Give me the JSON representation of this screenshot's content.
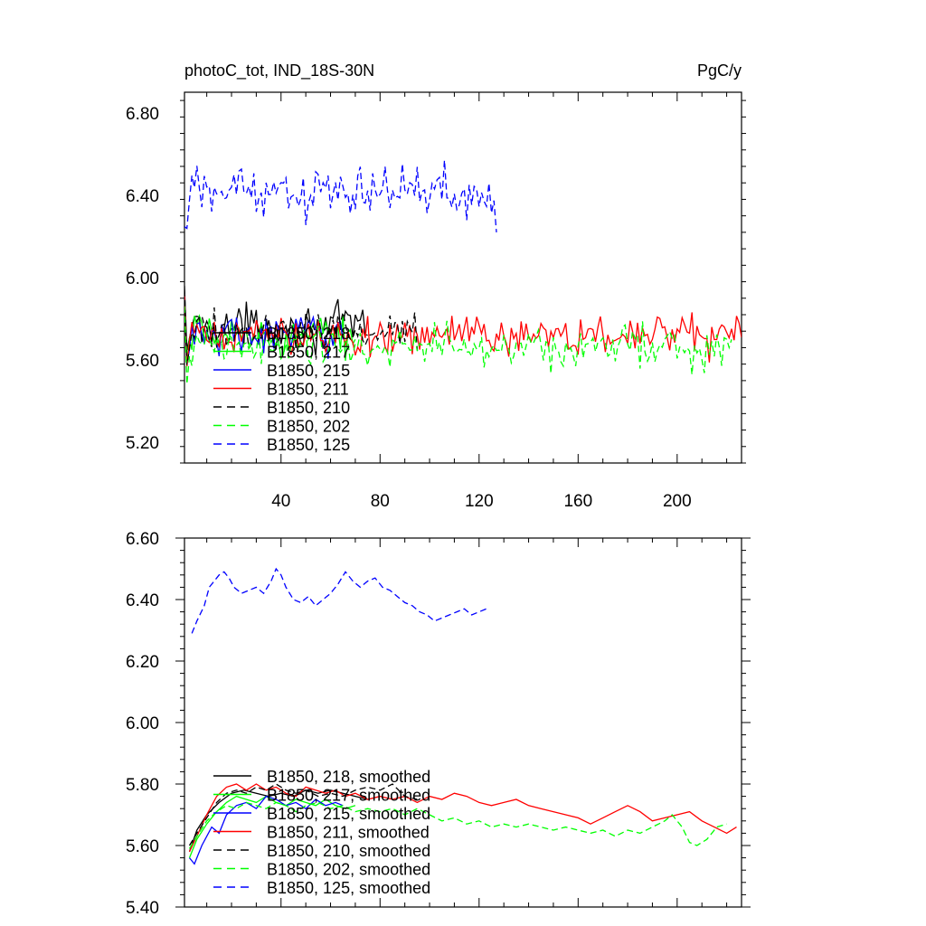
{
  "chart_data": [
    {
      "type": "line",
      "title": "photoC_tot, IND_18S-30N",
      "units": "PgC/y",
      "xlim": [
        1,
        226
      ],
      "ylim": [
        5.1,
        6.9
      ],
      "xticks": [
        40,
        80,
        120,
        160,
        200
      ],
      "yticks": [
        5.2,
        5.6,
        6.0,
        6.4,
        6.8
      ],
      "ytick_labels": [
        "5.20",
        "5.60",
        "6.00",
        "6.40",
        "6.80"
      ],
      "grid": false,
      "legend_position": "lower-left",
      "series": [
        {
          "name": "B1850, 218",
          "color": "#000000",
          "dash": "solid",
          "n": 75,
          "mean": 5.76,
          "amp": 0.09,
          "end_y": 5.72
        },
        {
          "name": "B1850, 217",
          "color": "#00ff00",
          "dash": "solid",
          "n": 70,
          "mean": 5.72,
          "amp": 0.08,
          "end_y": 5.7
        },
        {
          "name": "B1850, 215",
          "color": "#0000ff",
          "dash": "solid",
          "n": 65,
          "mean": 5.72,
          "amp": 0.09,
          "end_y": 5.7
        },
        {
          "name": "B1850, 211",
          "color": "#ff0000",
          "dash": "solid",
          "n": 226,
          "mean": 5.72,
          "amp": 0.08,
          "end_y": 5.71
        },
        {
          "name": "B1850, 210",
          "color": "#000000",
          "dash": "dashed",
          "n": 95,
          "mean": 5.74,
          "amp": 0.08,
          "end_y": 5.65
        },
        {
          "name": "B1850, 202",
          "color": "#00ff00",
          "dash": "dashed",
          "n": 222,
          "mean": 5.66,
          "amp": 0.09,
          "end_y": 5.7
        },
        {
          "name": "B1850, 125",
          "color": "#0000ff",
          "dash": "dashed",
          "n": 127,
          "mean": 6.42,
          "amp": 0.11,
          "start_y": 6.24,
          "end_y": 6.22
        }
      ]
    },
    {
      "type": "line",
      "xlim": [
        1,
        226
      ],
      "ylim": [
        5.4,
        6.6
      ],
      "xticks": [
        40,
        80,
        120,
        160,
        200
      ],
      "yticks": [
        5.4,
        5.6,
        5.8,
        6.0,
        6.2,
        6.4,
        6.6
      ],
      "ytick_labels": [
        "5.40",
        "5.60",
        "5.80",
        "6.00",
        "6.20",
        "6.40",
        "6.60"
      ],
      "grid": false,
      "legend_position": "lower-left",
      "series": [
        {
          "name": "B1850, 218, smoothed",
          "color": "#000000",
          "dash": "solid",
          "points": [
            [
              3,
              5.58
            ],
            [
              6,
              5.65
            ],
            [
              10,
              5.7
            ],
            [
              15,
              5.74
            ],
            [
              20,
              5.77
            ],
            [
              25,
              5.78
            ],
            [
              30,
              5.77
            ],
            [
              35,
              5.76
            ],
            [
              40,
              5.77
            ],
            [
              45,
              5.76
            ],
            [
              50,
              5.78
            ],
            [
              55,
              5.77
            ],
            [
              60,
              5.78
            ],
            [
              65,
              5.77
            ],
            [
              70,
              5.76
            ],
            [
              75,
              5.75
            ]
          ]
        },
        {
          "name": "B1850, 217, smoothed",
          "color": "#00ff00",
          "dash": "solid",
          "points": [
            [
              3,
              5.56
            ],
            [
              6,
              5.62
            ],
            [
              10,
              5.67
            ],
            [
              14,
              5.71
            ],
            [
              18,
              5.74
            ],
            [
              22,
              5.76
            ],
            [
              26,
              5.75
            ],
            [
              30,
              5.74
            ],
            [
              34,
              5.76
            ],
            [
              38,
              5.74
            ],
            [
              42,
              5.73
            ],
            [
              46,
              5.75
            ],
            [
              50,
              5.74
            ],
            [
              54,
              5.73
            ],
            [
              58,
              5.75
            ],
            [
              62,
              5.73
            ],
            [
              66,
              5.72
            ],
            [
              70,
              5.73
            ]
          ]
        },
        {
          "name": "B1850, 215, smoothed",
          "color": "#0000ff",
          "dash": "solid",
          "points": [
            [
              3,
              5.56
            ],
            [
              5,
              5.54
            ],
            [
              8,
              5.6
            ],
            [
              12,
              5.66
            ],
            [
              15,
              5.64
            ],
            [
              18,
              5.7
            ],
            [
              22,
              5.73
            ],
            [
              26,
              5.74
            ],
            [
              30,
              5.72
            ],
            [
              34,
              5.76
            ],
            [
              38,
              5.75
            ],
            [
              42,
              5.73
            ],
            [
              46,
              5.74
            ],
            [
              50,
              5.72
            ],
            [
              54,
              5.75
            ],
            [
              58,
              5.73
            ],
            [
              62,
              5.74
            ],
            [
              65,
              5.73
            ]
          ]
        },
        {
          "name": "B1850, 211, smoothed",
          "color": "#ff0000",
          "dash": "solid",
          "points": [
            [
              3,
              5.58
            ],
            [
              6,
              5.63
            ],
            [
              10,
              5.7
            ],
            [
              14,
              5.76
            ],
            [
              18,
              5.79
            ],
            [
              22,
              5.8
            ],
            [
              26,
              5.78
            ],
            [
              30,
              5.8
            ],
            [
              34,
              5.78
            ],
            [
              38,
              5.79
            ],
            [
              42,
              5.77
            ],
            [
              46,
              5.76
            ],
            [
              50,
              5.79
            ],
            [
              54,
              5.78
            ],
            [
              58,
              5.77
            ],
            [
              62,
              5.78
            ],
            [
              66,
              5.76
            ],
            [
              70,
              5.77
            ],
            [
              75,
              5.75
            ],
            [
              80,
              5.76
            ],
            [
              85,
              5.75
            ],
            [
              90,
              5.76
            ],
            [
              95,
              5.74
            ],
            [
              100,
              5.76
            ],
            [
              105,
              5.75
            ],
            [
              110,
              5.77
            ],
            [
              115,
              5.76
            ],
            [
              120,
              5.74
            ],
            [
              125,
              5.73
            ],
            [
              130,
              5.74
            ],
            [
              135,
              5.75
            ],
            [
              140,
              5.73
            ],
            [
              145,
              5.72
            ],
            [
              150,
              5.71
            ],
            [
              155,
              5.7
            ],
            [
              160,
              5.69
            ],
            [
              165,
              5.67
            ],
            [
              170,
              5.69
            ],
            [
              175,
              5.71
            ],
            [
              180,
              5.73
            ],
            [
              185,
              5.71
            ],
            [
              190,
              5.68
            ],
            [
              195,
              5.69
            ],
            [
              200,
              5.7
            ],
            [
              205,
              5.71
            ],
            [
              210,
              5.68
            ],
            [
              215,
              5.66
            ],
            [
              220,
              5.64
            ],
            [
              224,
              5.66
            ]
          ]
        },
        {
          "name": "B1850, 210, smoothed",
          "color": "#000000",
          "dash": "dashed",
          "points": [
            [
              3,
              5.6
            ],
            [
              6,
              5.64
            ],
            [
              10,
              5.69
            ],
            [
              14,
              5.74
            ],
            [
              18,
              5.77
            ],
            [
              22,
              5.78
            ],
            [
              26,
              5.77
            ],
            [
              30,
              5.79
            ],
            [
              34,
              5.78
            ],
            [
              38,
              5.8
            ],
            [
              42,
              5.78
            ],
            [
              46,
              5.77
            ],
            [
              50,
              5.78
            ],
            [
              55,
              5.76
            ],
            [
              60,
              5.77
            ],
            [
              65,
              5.76
            ],
            [
              70,
              5.78
            ],
            [
              75,
              5.79
            ],
            [
              80,
              5.78
            ],
            [
              85,
              5.8
            ],
            [
              90,
              5.76
            ],
            [
              95,
              5.75
            ]
          ]
        },
        {
          "name": "B1850, 202, smoothed",
          "color": "#00ff00",
          "dash": "dashed",
          "points": [
            [
              3,
              5.59
            ],
            [
              6,
              5.63
            ],
            [
              10,
              5.68
            ],
            [
              14,
              5.71
            ],
            [
              18,
              5.73
            ],
            [
              22,
              5.72
            ],
            [
              26,
              5.74
            ],
            [
              30,
              5.73
            ],
            [
              34,
              5.72
            ],
            [
              38,
              5.74
            ],
            [
              42,
              5.73
            ],
            [
              46,
              5.71
            ],
            [
              50,
              5.73
            ],
            [
              55,
              5.74
            ],
            [
              60,
              5.72
            ],
            [
              65,
              5.73
            ],
            [
              70,
              5.71
            ],
            [
              75,
              5.72
            ],
            [
              80,
              5.71
            ],
            [
              85,
              5.72
            ],
            [
              90,
              5.7
            ],
            [
              95,
              5.72
            ],
            [
              100,
              5.7
            ],
            [
              105,
              5.68
            ],
            [
              110,
              5.69
            ],
            [
              115,
              5.67
            ],
            [
              120,
              5.68
            ],
            [
              125,
              5.66
            ],
            [
              130,
              5.67
            ],
            [
              135,
              5.66
            ],
            [
              140,
              5.67
            ],
            [
              145,
              5.66
            ],
            [
              150,
              5.65
            ],
            [
              155,
              5.66
            ],
            [
              160,
              5.65
            ],
            [
              165,
              5.64
            ],
            [
              170,
              5.65
            ],
            [
              175,
              5.63
            ],
            [
              180,
              5.65
            ],
            [
              185,
              5.64
            ],
            [
              190,
              5.66
            ],
            [
              195,
              5.68
            ],
            [
              198,
              5.7
            ],
            [
              202,
              5.66
            ],
            [
              205,
              5.61
            ],
            [
              208,
              5.6
            ],
            [
              212,
              5.62
            ],
            [
              216,
              5.66
            ],
            [
              220,
              5.67
            ]
          ]
        },
        {
          "name": "B1850, 125, smoothed",
          "color": "#0000ff",
          "dash": "dashed",
          "points": [
            [
              4,
              6.29
            ],
            [
              6,
              6.33
            ],
            [
              9,
              6.38
            ],
            [
              11,
              6.44
            ],
            [
              13,
              6.46
            ],
            [
              15,
              6.48
            ],
            [
              17,
              6.49
            ],
            [
              19,
              6.47
            ],
            [
              21,
              6.44
            ],
            [
              24,
              6.42
            ],
            [
              27,
              6.43
            ],
            [
              30,
              6.44
            ],
            [
              33,
              6.42
            ],
            [
              36,
              6.46
            ],
            [
              38,
              6.5
            ],
            [
              40,
              6.48
            ],
            [
              42,
              6.44
            ],
            [
              45,
              6.4
            ],
            [
              48,
              6.39
            ],
            [
              51,
              6.41
            ],
            [
              54,
              6.38
            ],
            [
              57,
              6.4
            ],
            [
              60,
              6.42
            ],
            [
              63,
              6.45
            ],
            [
              66,
              6.49
            ],
            [
              69,
              6.46
            ],
            [
              72,
              6.44
            ],
            [
              75,
              6.46
            ],
            [
              78,
              6.47
            ],
            [
              81,
              6.44
            ],
            [
              84,
              6.43
            ],
            [
              87,
              6.41
            ],
            [
              90,
              6.39
            ],
            [
              93,
              6.38
            ],
            [
              96,
              6.36
            ],
            [
              99,
              6.35
            ],
            [
              102,
              6.33
            ],
            [
              105,
              6.34
            ],
            [
              108,
              6.35
            ],
            [
              111,
              6.36
            ],
            [
              114,
              6.37
            ],
            [
              117,
              6.35
            ],
            [
              120,
              6.36
            ],
            [
              123,
              6.37
            ]
          ]
        }
      ]
    }
  ]
}
